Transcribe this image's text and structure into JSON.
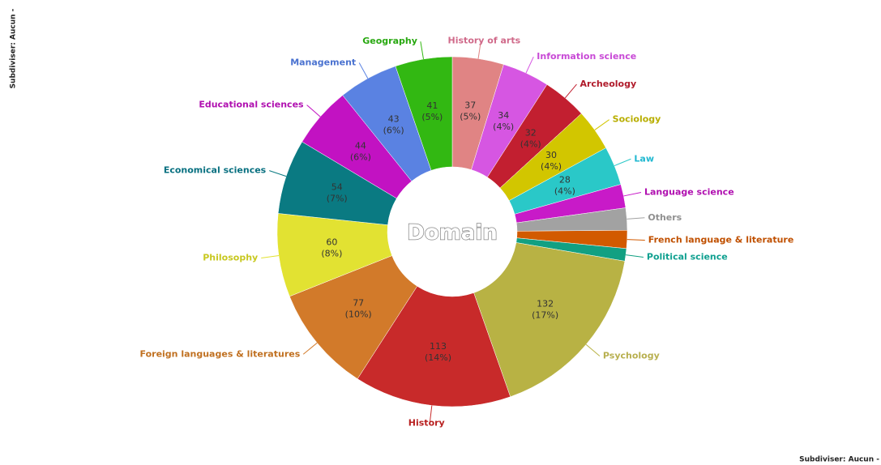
{
  "chart_data": {
    "type": "donut",
    "title": "Domain",
    "subtitle": "Subdiviser: Aucun -",
    "footer": "Subdiviser: Aucun -",
    "categories": [
      "History of arts",
      "Information science",
      "Archeology",
      "Sociology",
      "Law",
      "Language science",
      "Others",
      "French language & literature",
      "Political science",
      "Psychology",
      "History",
      "Foreign languages & literatures",
      "Philosophy",
      "Economical sciences",
      "Educational sciences",
      "Management",
      "Geography"
    ],
    "values": [
      37,
      34,
      32,
      30,
      28,
      17,
      16,
      13,
      9,
      132,
      113,
      77,
      60,
      54,
      44,
      43,
      41
    ],
    "percent_labels": [
      "(5%)",
      "(4%)",
      "(4%)",
      "(4%)",
      "(4%)",
      null,
      null,
      null,
      null,
      "(17%)",
      "(14%)",
      "(10%)",
      "(8%)",
      "(7%)",
      "(6%)",
      "(6%)",
      "(5%)"
    ],
    "colors": [
      "#e08484",
      "#d656e2",
      "#c21f30",
      "#d2c600",
      "#2ac8c8",
      "#c81ac8",
      "#a2a2a2",
      "#d25a00",
      "#12a082",
      "#b8b244",
      "#c82a2a",
      "#d27a2a",
      "#e2e232",
      "#0a7a82",
      "#c212c2",
      "#5a82e2",
      "#32b812"
    ],
    "label_colors": [
      "#d06a8a",
      "#c84ad6",
      "#b01a2a",
      "#b8ae00",
      "#20b8d0",
      "#b010b0",
      "#909090",
      "#c05000",
      "#10a090",
      "#b8b050",
      "#b82020",
      "#c07020",
      "#c8c820",
      "#087080",
      "#b010b0",
      "#4a72d0",
      "#28a810"
    ]
  }
}
